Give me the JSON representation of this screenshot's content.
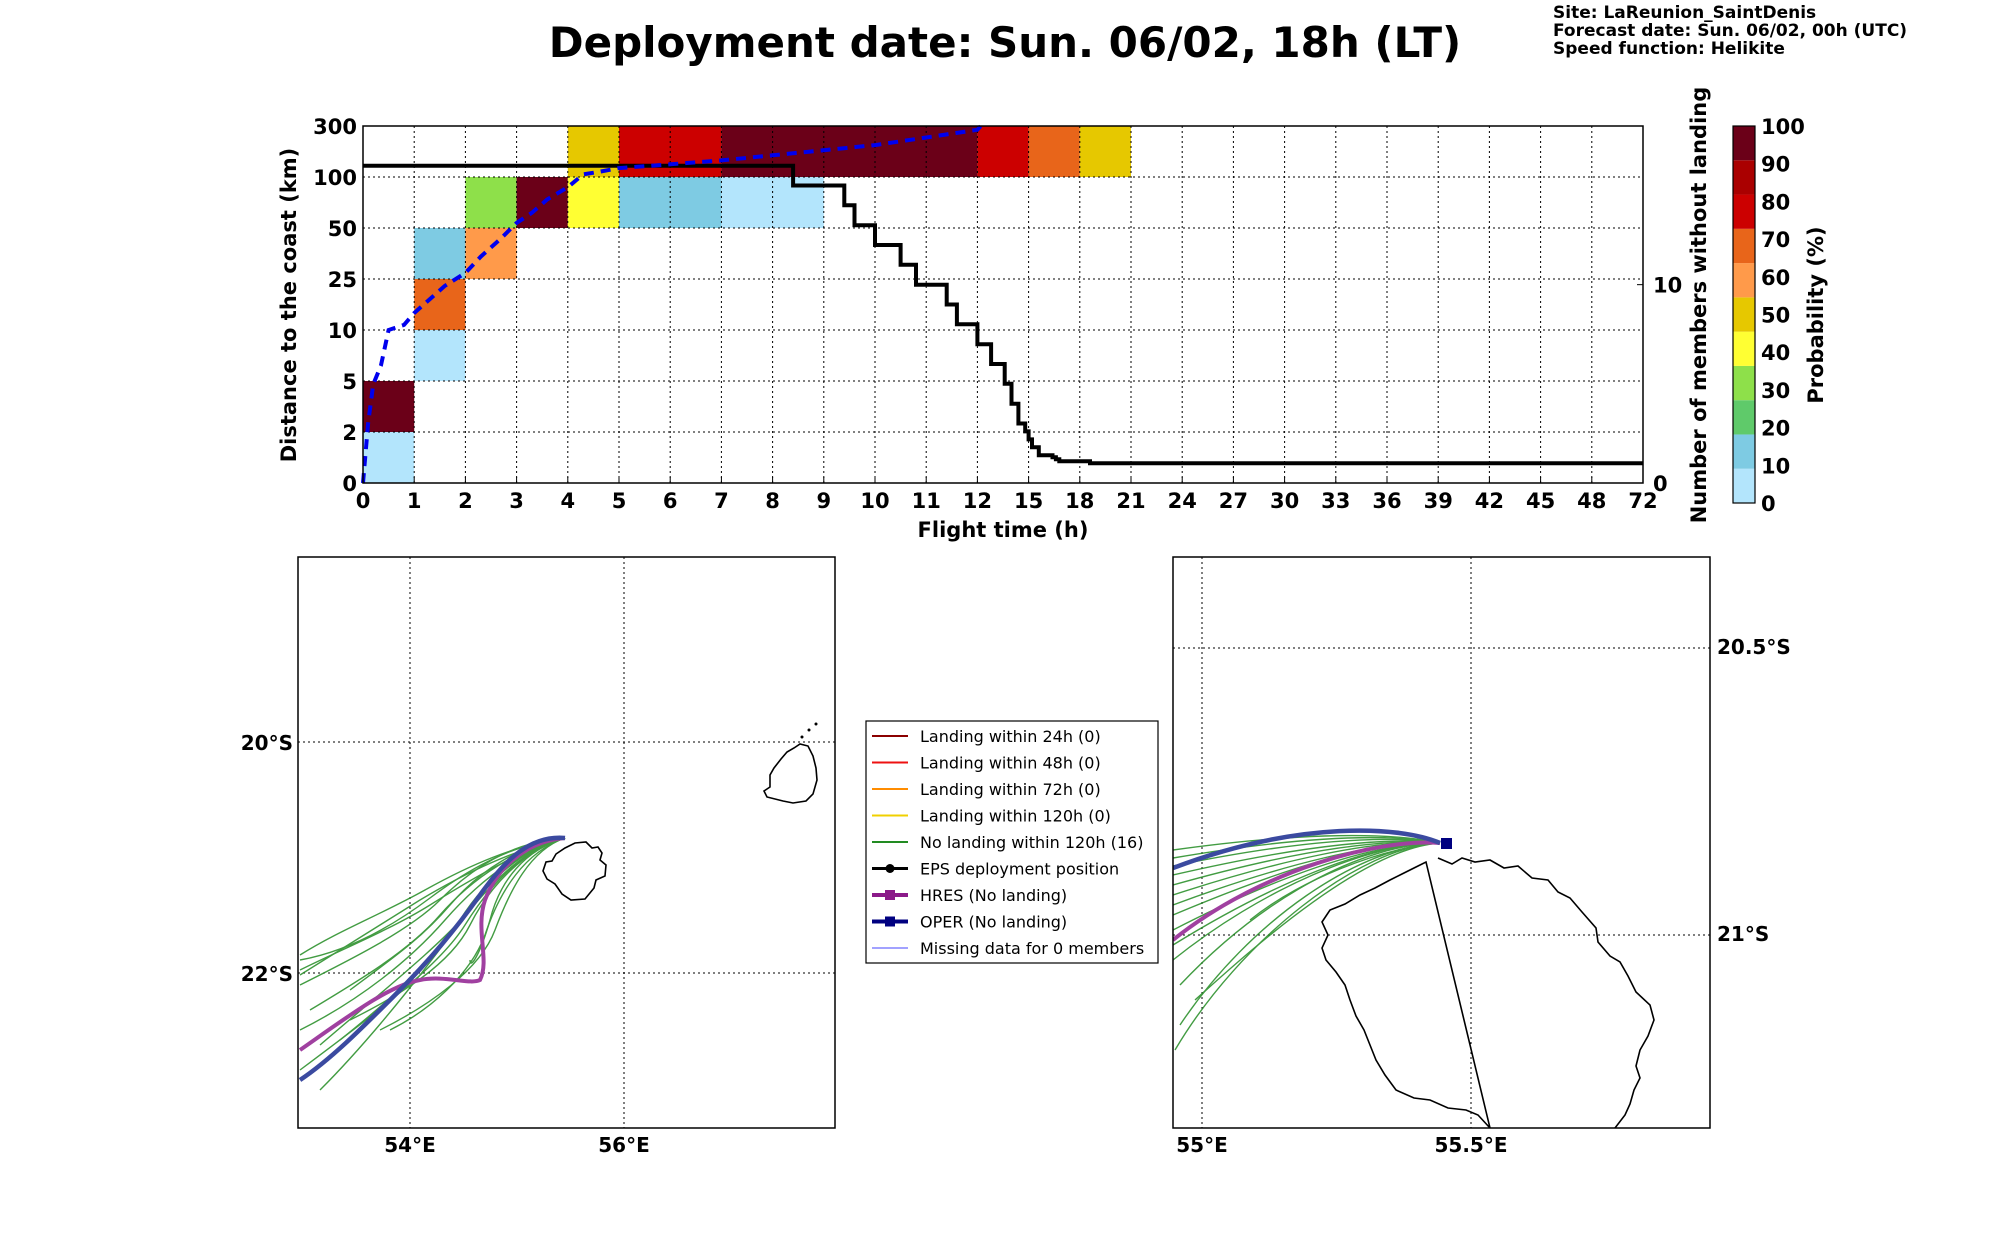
{
  "header": {
    "title": "Deployment date: Sun. 06/02, 18h (LT)",
    "site": "Site: LaReunion_SaintDenis",
    "forecast": "Forecast date: Sun. 06/02, 00h (UTC)",
    "speed": "Speed function: Helikite"
  },
  "chart_data": [
    {
      "type": "heatmap",
      "ylabel": "Distance to the coast (km)",
      "y2label": "Number of members without landing",
      "xlabel": "Flight time (h)",
      "x_ticks": [
        "0",
        "1",
        "2",
        "3",
        "4",
        "5",
        "6",
        "7",
        "8",
        "9",
        "10",
        "11",
        "12",
        "15",
        "18",
        "21",
        "24",
        "27",
        "30",
        "33",
        "36",
        "39",
        "42",
        "45",
        "48",
        "72"
      ],
      "y_ticks": [
        "0",
        "2",
        "5",
        "10",
        "25",
        "50",
        "100",
        "300"
      ],
      "y2_ticks": [
        "0",
        "10"
      ],
      "y2lim": [
        0,
        18
      ],
      "colorbar": {
        "label": "Probability (%)",
        "ticks": [
          "0",
          "10",
          "20",
          "30",
          "40",
          "50",
          "60",
          "70",
          "80",
          "90",
          "100"
        ],
        "colors": [
          "#b3e5fc",
          "#7ecbe3",
          "#5fca6a",
          "#8ee04a",
          "#ffff33",
          "#e6c800",
          "#ff9a4a",
          "#e8651a",
          "#cc0000",
          "#aa0000",
          "#6b0018"
        ]
      },
      "cells": [
        {
          "x": [
            0,
            1
          ],
          "y": [
            "0",
            "2"
          ],
          "probability": 0
        },
        {
          "x": [
            0,
            1
          ],
          "y": [
            "2",
            "5"
          ],
          "probability": 100
        },
        {
          "x": [
            1,
            2
          ],
          "y": [
            "5",
            "10"
          ],
          "probability": 0
        },
        {
          "x": [
            1,
            2
          ],
          "y": [
            "10",
            "25"
          ],
          "probability": 75
        },
        {
          "x": [
            1,
            2
          ],
          "y": [
            "25",
            "50"
          ],
          "probability": 10
        },
        {
          "x": [
            2,
            3
          ],
          "y": [
            "25",
            "50"
          ],
          "probability": 65
        },
        {
          "x": [
            2,
            3
          ],
          "y": [
            "50",
            "100"
          ],
          "probability": 35
        },
        {
          "x": [
            3,
            4
          ],
          "y": [
            "50",
            "100"
          ],
          "probability": 100
        },
        {
          "x": [
            4,
            5
          ],
          "y": [
            "50",
            "100"
          ],
          "probability": 45
        },
        {
          "x": [
            4,
            5
          ],
          "y": [
            "100",
            "300"
          ],
          "probability": 55
        },
        {
          "x": [
            5,
            7
          ],
          "y": [
            "50",
            "100"
          ],
          "probability": 10
        },
        {
          "x": [
            5,
            7
          ],
          "y": [
            "100",
            "300"
          ],
          "probability": 85
        },
        {
          "x": [
            7,
            9
          ],
          "y": [
            "50",
            "100"
          ],
          "probability": 0
        },
        {
          "x": [
            7,
            12
          ],
          "y": [
            "100",
            "300"
          ],
          "probability": 100
        },
        {
          "x": [
            12,
            15
          ],
          "y": [
            "100",
            "300"
          ],
          "probability": 85
        },
        {
          "x": [
            15,
            18
          ],
          "y": [
            "100",
            "300"
          ],
          "probability": 75
        },
        {
          "x": [
            18,
            21
          ],
          "y": [
            "100",
            "300"
          ],
          "probability": 55
        }
      ],
      "mean_distance_line": {
        "color": "#0000ee",
        "x": [
          0,
          0.1,
          0.2,
          0.35,
          0.5,
          0.8,
          1.0,
          1.3,
          1.6,
          2.0,
          2.3,
          2.7,
          3.0,
          3.3,
          3.6,
          4.0,
          4.3,
          4.6,
          5.0,
          6.0,
          7.0,
          8.0,
          9.0,
          10.0,
          11.0,
          12.0,
          12.2
        ],
        "y": [
          0,
          2.5,
          4.8,
          6.5,
          10,
          11.5,
          15,
          19,
          23,
          28,
          36,
          45,
          55,
          65,
          78,
          90,
          110,
          120,
          135,
          150,
          165,
          185,
          205,
          225,
          255,
          285,
          300
        ]
      },
      "members_line": {
        "color": "#000000",
        "x": [
          0,
          8.4,
          8.4,
          9.4,
          9.4,
          9.6,
          9.6,
          10.0,
          10.0,
          10.5,
          10.5,
          10.8,
          10.8,
          11.4,
          11.4,
          11.6,
          11.6,
          12.0,
          12.0,
          12.8,
          12.8,
          13.6,
          13.6,
          14.0,
          14.0,
          14.4,
          14.4,
          14.8,
          14.8,
          15.0,
          15.0,
          15.2,
          15.2,
          15.6,
          15.6,
          16.4,
          16.4,
          16.6,
          16.6,
          16.8,
          16.8,
          18.6,
          18.6,
          72
        ],
        "y": [
          16,
          16,
          15,
          15,
          14,
          14,
          13,
          13,
          12,
          12,
          11,
          11,
          10,
          10,
          9,
          9,
          8,
          8,
          7,
          7,
          6,
          6,
          5,
          5,
          4,
          4,
          3,
          3,
          2.6,
          2.6,
          2.2,
          2.2,
          1.8,
          1.8,
          1.4,
          1.4,
          1.3,
          1.3,
          1.2,
          1.2,
          1.1,
          1.1,
          1,
          1
        ]
      }
    }
  ],
  "maps": {
    "left": {
      "lat_labels": [
        "20°S",
        "22°S"
      ],
      "lon_labels": [
        "54°E",
        "56°E"
      ]
    },
    "right": {
      "lat_labels": [
        "20.5°S",
        "21°S"
      ],
      "lon_labels": [
        "55°E",
        "55.5°E"
      ]
    }
  },
  "legend": {
    "items": [
      {
        "label": "Landing within 24h (0)",
        "color": "#8b0000",
        "marker": "none",
        "width": 2
      },
      {
        "label": "Landing within 48h (0)",
        "color": "#ee1111",
        "marker": "none",
        "width": 2
      },
      {
        "label": "Landing within 72h (0)",
        "color": "#ff8c00",
        "marker": "none",
        "width": 2
      },
      {
        "label": "Landing within 120h (0)",
        "color": "#f0d000",
        "marker": "none",
        "width": 2
      },
      {
        "label": "No landing within 120h (16)",
        "color": "#228b22",
        "marker": "none",
        "width": 2
      },
      {
        "label": "EPS deployment position",
        "color": "#000000",
        "marker": "circle",
        "width": 3
      },
      {
        "label": "HRES (No landing)",
        "color": "#8b1a89",
        "marker": "square",
        "width": 4
      },
      {
        "label": "OPER (No landing)",
        "color": "#000080",
        "marker": "square",
        "width": 4
      },
      {
        "label": "Missing data for 0 members",
        "color": "#4444ff",
        "marker": "none",
        "width": 1
      }
    ]
  },
  "colors": {
    "ensemble": "#228b22",
    "hres": "#a040a0",
    "oper": "#3b4aa0",
    "deploy_marker": "#000080"
  }
}
